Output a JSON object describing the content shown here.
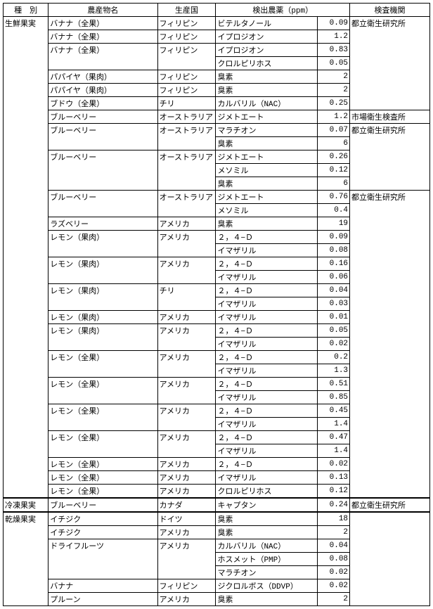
{
  "headers": {
    "type": "種　別",
    "product": "農産物名",
    "origin": "生産国",
    "pesticide": "検出農薬（ppm）",
    "institution": "検査機関"
  },
  "sections": [
    {
      "type_label": "生鮮果実",
      "rows": [
        {
          "prod": "バナナ（全果）",
          "origin": "フィリピン",
          "pest": "ビテルタノール",
          "ppm": "0.09",
          "inst": "都立衛生研究所"
        },
        {
          "prod": "バナナ（全果）",
          "origin": "フィリピン",
          "pest": "イプロジオン",
          "ppm": "1.2",
          "inst": ""
        },
        {
          "prod": "バナナ（全果）",
          "origin": "フィリピン",
          "pest": "イプロジオン",
          "ppm": "0.83",
          "inst": "",
          "group_top": true
        },
        {
          "prod": "",
          "origin": "",
          "pest": "クロルピリホス",
          "ppm": "0.05",
          "inst": "",
          "group_in": true
        },
        {
          "prod": "パパイヤ（果肉）",
          "origin": "フィリピン",
          "pest": "臭素",
          "ppm": "2",
          "inst": ""
        },
        {
          "prod": "パパイヤ（果肉）",
          "origin": "フィリピン",
          "pest": "臭素",
          "ppm": "2",
          "inst": ""
        },
        {
          "prod": "ブドウ（全果）",
          "origin": "チリ",
          "pest": "カルバリル（NAC）",
          "ppm": "0.25",
          "inst": ""
        },
        {
          "prod": "ブルーベリー",
          "origin": "オーストラリア",
          "pest": "ジメトエート",
          "ppm": "1.2",
          "inst": "市場衛生検査所"
        },
        {
          "prod": "ブルーベリー",
          "origin": "オーストラリア",
          "pest": "マラチオン",
          "ppm": "0.07",
          "inst": "都立衛生研究所",
          "group_top": true
        },
        {
          "prod": "",
          "origin": "",
          "pest": "臭素",
          "ppm": "6",
          "inst": "",
          "group_in": true
        },
        {
          "prod": "ブルーベリー",
          "origin": "オーストラリア",
          "pest": "ジメトエート",
          "ppm": "0.26",
          "inst": "",
          "group_top": true
        },
        {
          "prod": "",
          "origin": "",
          "pest": "メソミル",
          "ppm": "0.12",
          "inst": "",
          "group_in": true
        },
        {
          "prod": "",
          "origin": "",
          "pest": "臭素",
          "ppm": "6",
          "inst": "",
          "group_in": true
        },
        {
          "prod": "ブルーベリー",
          "origin": "オーストラリア",
          "pest": "ジメトエート",
          "ppm": "0.76",
          "inst": "都立衛生研究所",
          "group_top": true
        },
        {
          "prod": "",
          "origin": "",
          "pest": "メソミル",
          "ppm": "0.4",
          "inst": "",
          "group_in": true
        },
        {
          "prod": "ラズベリー",
          "origin": "アメリカ",
          "pest": "臭素",
          "ppm": "19",
          "inst": ""
        },
        {
          "prod": "レモン（果肉）",
          "origin": "アメリカ",
          "pest": "２，４−Ｄ",
          "ppm": "0.09",
          "inst": "",
          "group_top": true
        },
        {
          "prod": "",
          "origin": "",
          "pest": "イマザリル",
          "ppm": "0.08",
          "inst": "",
          "group_in": true
        },
        {
          "prod": "レモン（果肉）",
          "origin": "アメリカ",
          "pest": "２，４−Ｄ",
          "ppm": "0.16",
          "inst": "",
          "group_top": true
        },
        {
          "prod": "",
          "origin": "",
          "pest": "イマザリル",
          "ppm": "0.06",
          "inst": "",
          "group_in": true
        },
        {
          "prod": "レモン（果肉）",
          "origin": "チリ",
          "pest": "２，４−Ｄ",
          "ppm": "0.04",
          "inst": "",
          "group_top": true
        },
        {
          "prod": "",
          "origin": "",
          "pest": "イマザリル",
          "ppm": "0.03",
          "inst": "",
          "group_in": true
        },
        {
          "prod": "レモン（果肉）",
          "origin": "アメリカ",
          "pest": "イマザリル",
          "ppm": "0.01",
          "inst": ""
        },
        {
          "prod": "レモン（果肉）",
          "origin": "アメリカ",
          "pest": "２，４−Ｄ",
          "ppm": "0.05",
          "inst": "",
          "group_top": true
        },
        {
          "prod": "",
          "origin": "",
          "pest": "イマザリル",
          "ppm": "0.02",
          "inst": "",
          "group_in": true
        },
        {
          "prod": "レモン（全果）",
          "origin": "アメリカ",
          "pest": "２，４−Ｄ",
          "ppm": "0.2",
          "inst": "",
          "group_top": true
        },
        {
          "prod": "",
          "origin": "",
          "pest": "イマザリル",
          "ppm": "1.3",
          "inst": "",
          "group_in": true
        },
        {
          "prod": "レモン（全果）",
          "origin": "アメリカ",
          "pest": "２，４−Ｄ",
          "ppm": "0.51",
          "inst": "",
          "group_top": true
        },
        {
          "prod": "",
          "origin": "",
          "pest": "イマザリル",
          "ppm": "0.85",
          "inst": "",
          "group_in": true
        },
        {
          "prod": "レモン（全果）",
          "origin": "アメリカ",
          "pest": "２，４−Ｄ",
          "ppm": "0.45",
          "inst": "",
          "group_top": true
        },
        {
          "prod": "",
          "origin": "",
          "pest": "イマザリル",
          "ppm": "1.4",
          "inst": "",
          "group_in": true
        },
        {
          "prod": "レモン（全果）",
          "origin": "アメリカ",
          "pest": "２，４−Ｄ",
          "ppm": "0.47",
          "inst": "",
          "group_top": true
        },
        {
          "prod": "",
          "origin": "",
          "pest": "イマザリル",
          "ppm": "1.4",
          "inst": "",
          "group_in": true
        },
        {
          "prod": "レモン（全果）",
          "origin": "アメリカ",
          "pest": "２，４−Ｄ",
          "ppm": "0.02",
          "inst": ""
        },
        {
          "prod": "レモン（全果）",
          "origin": "アメリカ",
          "pest": "イマザリル",
          "ppm": "0.13",
          "inst": ""
        },
        {
          "prod": "レモン（全果）",
          "origin": "アメリカ",
          "pest": "クロルピリホス",
          "ppm": "0.12",
          "inst": ""
        }
      ]
    },
    {
      "type_label": "冷凍果実",
      "rows": [
        {
          "prod": "ブルーベリー",
          "origin": "カナダ",
          "pest": "キャプタン",
          "ppm": "0.24",
          "inst": "都立衛生研究所"
        }
      ]
    },
    {
      "type_label": "乾燥果実",
      "rows": [
        {
          "prod": "イチジク",
          "origin": "ドイツ",
          "pest": "臭素",
          "ppm": "18",
          "inst": ""
        },
        {
          "prod": "イチジク",
          "origin": "アメリカ",
          "pest": "臭素",
          "ppm": "2",
          "inst": ""
        },
        {
          "prod": "ドライフルーツ",
          "origin": "アメリカ",
          "pest": "カルバリル（NAC）",
          "ppm": "0.04",
          "inst": "",
          "group_top": true
        },
        {
          "prod": "",
          "origin": "",
          "pest": "ホスメット（PMP）",
          "ppm": "0.08",
          "inst": "",
          "group_in": true
        },
        {
          "prod": "",
          "origin": "",
          "pest": "マラチオン",
          "ppm": "0.02",
          "inst": "",
          "group_in": true
        },
        {
          "prod": "バナナ",
          "origin": "フィリピン",
          "pest": "ジクロルボス（DDVP）",
          "ppm": "0.02",
          "inst": ""
        },
        {
          "prod": "プルーン",
          "origin": "アメリカ",
          "pest": "臭素",
          "ppm": "2",
          "inst": ""
        }
      ]
    }
  ]
}
